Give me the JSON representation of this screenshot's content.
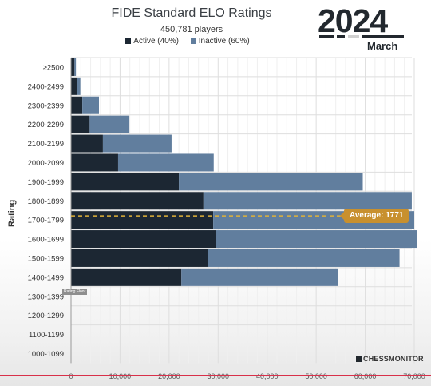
{
  "header": {
    "title": "FIDE Standard ELO Ratings",
    "subtitle": "450,781 players",
    "year": "2024",
    "month": "March"
  },
  "legend": {
    "active_label": "Active (40%)",
    "inactive_label": "Inactive (60%)"
  },
  "colors": {
    "active": "#1c2733",
    "inactive": "#617e9e",
    "average_line": "#e0b23a",
    "average_badge": "#c8902e"
  },
  "annotations": {
    "average_label": "Average: 1771",
    "rating_floor_label": "Rating Floor"
  },
  "brand": "CHESSMONITOR",
  "chart_data": {
    "type": "bar",
    "orientation": "horizontal",
    "stacked": true,
    "ylabel": "Rating",
    "xlabel": "",
    "xlim": [
      0,
      70000
    ],
    "x_ticks": [
      "0",
      "10,000",
      "20,000",
      "30,000",
      "40,000",
      "50,000",
      "60,000",
      "70,000"
    ],
    "categories": [
      "≥2500",
      "2400-2499",
      "2300-2399",
      "2200-2299",
      "2100-2199",
      "2000-2099",
      "1900-1999",
      "1800-1899",
      "1700-1799",
      "1600-1699",
      "1500-1599",
      "1400-1499",
      "1300-1399",
      "1200-1299",
      "1100-1199",
      "1000-1099"
    ],
    "series": [
      {
        "name": "Active (40%)",
        "values": [
          700,
          1200,
          2300,
          3800,
          6500,
          9600,
          22000,
          27000,
          29000,
          29500,
          28000,
          22500,
          0,
          0,
          0,
          0
        ]
      },
      {
        "name": "Inactive (60%)",
        "values": [
          300,
          700,
          3400,
          8100,
          14000,
          19500,
          37500,
          42500,
          41000,
          41000,
          39000,
          32000,
          0,
          0,
          0,
          0
        ]
      }
    ],
    "average_rating": 1771,
    "rating_floor": 1400,
    "grid": true
  }
}
